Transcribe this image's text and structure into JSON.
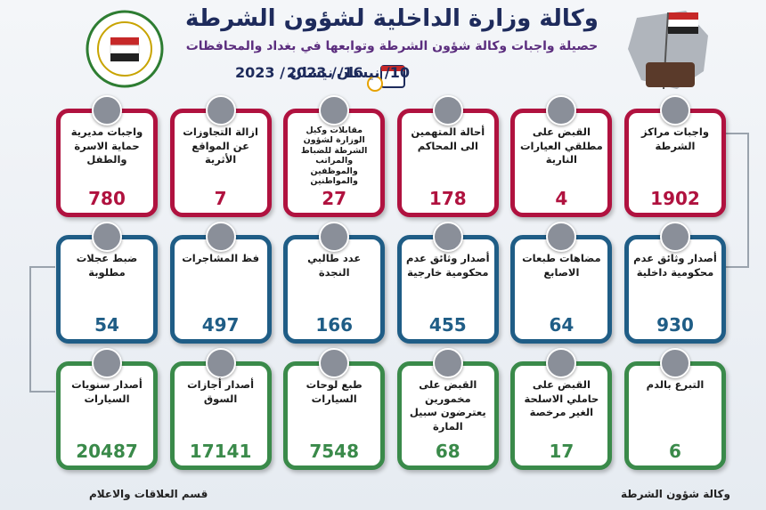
{
  "header": {
    "title": "وكالة وزارة الداخلية لشؤون الشرطة",
    "subtitle": "حصيلة واجبات وكالة شؤون الشرطة وتوابعها في بغداد والمحافظات",
    "date_from": "10/ نيسان/ 2023",
    "date_to": "16/ نيسان / 2023"
  },
  "rows": [
    {
      "cards": [
        {
          "label": "واجبات مراكز الشرطة",
          "value": 1902
        },
        {
          "label": "القبض على مطلقي العيارات النارية",
          "value": 4
        },
        {
          "label": "أحالة المتهمين الى المحاكم",
          "value": 178
        },
        {
          "label": "مقابلات وكيل الوزارة لشؤون الشرطة للضباط والمراتب والموظفين والمواطنين",
          "value": 27
        },
        {
          "label": "ازالة التجاوزات عن المواقع الأثرية",
          "value": 7
        },
        {
          "label": "واجبات مديرية حماية الاسرة والطفل",
          "value": 780
        }
      ]
    },
    {
      "cards": [
        {
          "label": "أصدار وثائق عدم محكومية داخلية",
          "value": 930
        },
        {
          "label": "مضاهات طبعات الاصابع",
          "value": 64
        },
        {
          "label": "أصدار وثائق عدم محكومية خارجية",
          "value": 455
        },
        {
          "label": "عدد طالبي النجدة",
          "value": 166
        },
        {
          "label": "فظ المشاجرات",
          "value": 497
        },
        {
          "label": "ضبط عجلات مطلوبة",
          "value": 54
        }
      ]
    },
    {
      "cards": [
        {
          "label": "التبرع بالدم",
          "value": 6
        },
        {
          "label": "القبض على حاملي الاسلحة الغير مرخصة",
          "value": 17
        },
        {
          "label": "القبض على مخمورين يعترضون سبيل المارة",
          "value": 68
        },
        {
          "label": "طبع لوحات السيارات",
          "value": 7548
        },
        {
          "label": "أصدار أجازات السوق",
          "value": 17141
        },
        {
          "label": "أصدار سنويات السيارات",
          "value": 20487
        }
      ]
    }
  ],
  "footer": {
    "left": "قسم العلاقات والاعلام",
    "right": "وكالة شؤون الشرطة"
  }
}
